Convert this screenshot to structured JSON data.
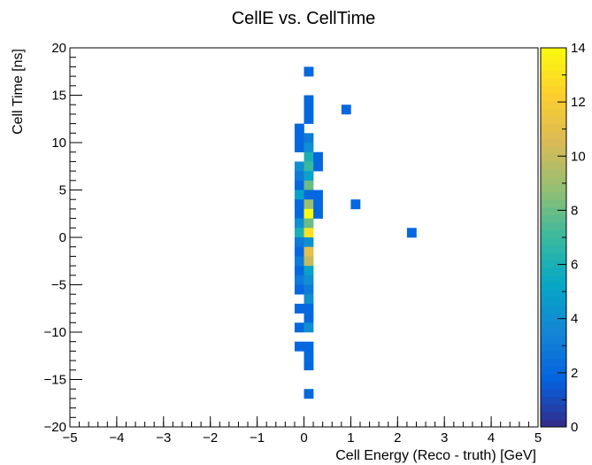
{
  "chart_data": {
    "type": "heatmap",
    "title": "CellE vs. CellTime",
    "xlabel": "Cell Energy (Reco - truth) [GeV]",
    "ylabel": "Cell Time [ns]",
    "xlim": [
      -5,
      5
    ],
    "ylim": [
      -20,
      20
    ],
    "bin_width_x": 0.2,
    "bin_width_y": 1,
    "x_ticks": [
      "−5",
      "−4",
      "−3",
      "−2",
      "−1",
      "0",
      "1",
      "2",
      "3",
      "4",
      "5"
    ],
    "y_ticks": [
      "−20",
      "−15",
      "−10",
      "−5",
      "0",
      "5",
      "10",
      "15",
      "20"
    ],
    "colorbar": {
      "range": [
        0,
        14
      ],
      "ticks": [
        "0",
        "2",
        "4",
        "6",
        "8",
        "10",
        "12",
        "14"
      ],
      "palette": [
        "#352a87",
        "#0363e1",
        "#1485d4",
        "#06a7c6",
        "#38b99e",
        "#92bf73",
        "#d9ba56",
        "#fcce2e",
        "#f9fb0e"
      ]
    },
    "cells": [
      {
        "x": 0.1,
        "y": 17.5,
        "count": 2
      },
      {
        "x": 0.1,
        "y": 14.5,
        "count": 2
      },
      {
        "x": 0.1,
        "y": 13.5,
        "count": 2
      },
      {
        "x": 0.9,
        "y": 13.5,
        "count": 2
      },
      {
        "x": 0.1,
        "y": 12.5,
        "count": 2
      },
      {
        "x": -0.1,
        "y": 11.5,
        "count": 2
      },
      {
        "x": -0.1,
        "y": 10.5,
        "count": 2
      },
      {
        "x": 0.1,
        "y": 10.5,
        "count": 3
      },
      {
        "x": -0.1,
        "y": 9.5,
        "count": 2
      },
      {
        "x": 0.1,
        "y": 9.5,
        "count": 4
      },
      {
        "x": 0.1,
        "y": 8.5,
        "count": 6
      },
      {
        "x": 0.3,
        "y": 8.5,
        "count": 2
      },
      {
        "x": -0.1,
        "y": 7.5,
        "count": 4
      },
      {
        "x": 0.1,
        "y": 7.5,
        "count": 7
      },
      {
        "x": 0.3,
        "y": 7.5,
        "count": 2
      },
      {
        "x": -0.1,
        "y": 6.5,
        "count": 3
      },
      {
        "x": 0.1,
        "y": 6.5,
        "count": 5
      },
      {
        "x": -0.1,
        "y": 5.5,
        "count": 2
      },
      {
        "x": 0.1,
        "y": 5.5,
        "count": 8
      },
      {
        "x": -0.1,
        "y": 4.5,
        "count": 5
      },
      {
        "x": 0.1,
        "y": 4.5,
        "count": 2
      },
      {
        "x": 0.3,
        "y": 4.5,
        "count": 2
      },
      {
        "x": -0.1,
        "y": 3.5,
        "count": 2
      },
      {
        "x": 0.1,
        "y": 3.5,
        "count": 9
      },
      {
        "x": 0.3,
        "y": 3.5,
        "count": 2
      },
      {
        "x": 1.1,
        "y": 3.5,
        "count": 2
      },
      {
        "x": -0.1,
        "y": 2.5,
        "count": 2
      },
      {
        "x": 0.1,
        "y": 2.5,
        "count": 14
      },
      {
        "x": 0.3,
        "y": 2.5,
        "count": 2
      },
      {
        "x": -0.1,
        "y": 1.5,
        "count": 4
      },
      {
        "x": 0.1,
        "y": 1.5,
        "count": 8
      },
      {
        "x": -0.1,
        "y": 0.5,
        "count": 6
      },
      {
        "x": 0.1,
        "y": 0.5,
        "count": 13
      },
      {
        "x": 2.3,
        "y": 0.5,
        "count": 2
      },
      {
        "x": -0.1,
        "y": -0.5,
        "count": 3
      },
      {
        "x": 0.1,
        "y": -0.5,
        "count": 4
      },
      {
        "x": -0.1,
        "y": -1.5,
        "count": 2
      },
      {
        "x": 0.1,
        "y": -1.5,
        "count": 11
      },
      {
        "x": -0.1,
        "y": -2.5,
        "count": 3
      },
      {
        "x": 0.1,
        "y": -2.5,
        "count": 10
      },
      {
        "x": -0.1,
        "y": -3.5,
        "count": 2
      },
      {
        "x": 0.1,
        "y": -3.5,
        "count": 5
      },
      {
        "x": -0.1,
        "y": -4.5,
        "count": 3
      },
      {
        "x": 0.1,
        "y": -4.5,
        "count": 4
      },
      {
        "x": -0.1,
        "y": -5.5,
        "count": 2
      },
      {
        "x": 0.1,
        "y": -5.5,
        "count": 3
      },
      {
        "x": 0.1,
        "y": -6.5,
        "count": 4
      },
      {
        "x": -0.1,
        "y": -7.5,
        "count": 2
      },
      {
        "x": 0.1,
        "y": -7.5,
        "count": 2
      },
      {
        "x": 0.1,
        "y": -8.5,
        "count": 2
      },
      {
        "x": -0.1,
        "y": -9.5,
        "count": 2
      },
      {
        "x": 0.1,
        "y": -9.5,
        "count": 4
      },
      {
        "x": -0.1,
        "y": -11.5,
        "count": 2
      },
      {
        "x": 0.1,
        "y": -11.5,
        "count": 2
      },
      {
        "x": 0.1,
        "y": -12.5,
        "count": 2
      },
      {
        "x": 0.1,
        "y": -13.5,
        "count": 2
      },
      {
        "x": 0.1,
        "y": -16.5,
        "count": 2
      }
    ]
  }
}
